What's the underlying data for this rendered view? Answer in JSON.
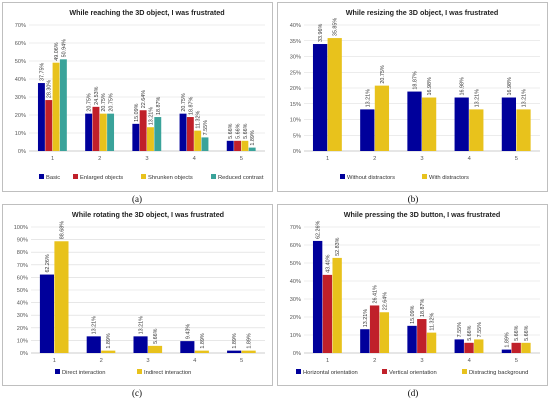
{
  "captions": [
    "(a)",
    "(b)",
    "(c)",
    "(d)"
  ],
  "chart_data": [
    {
      "type": "bar",
      "title": "While reaching the 3D object, I was frustrated",
      "categories": [
        "1",
        "2",
        "3",
        "4",
        "5"
      ],
      "ylim": [
        0,
        70
      ],
      "yticks": [
        0,
        10,
        20,
        30,
        40,
        50,
        60,
        70
      ],
      "ytick_labels": [
        "0%",
        "10%",
        "20%",
        "30%",
        "40%",
        "50%",
        "60%",
        "70%"
      ],
      "grid": true,
      "legend_position": "bottom",
      "series": [
        {
          "name": "Basic",
          "color": "#00009b",
          "values": [
            37.75,
            20.75,
            15.09,
            20.75,
            5.66
          ],
          "labels": [
            "37.75%",
            "20.75%",
            "15.09%",
            "20.75%",
            "5.66%"
          ]
        },
        {
          "name": "Enlarged objects",
          "color": "#c0202a",
          "values": [
            28.3,
            24.53,
            22.64,
            18.87,
            5.66
          ],
          "labels": [
            "28.30%",
            "24.53%",
            "22.64%",
            "18.87%",
            "5.66%"
          ]
        },
        {
          "name": "Shrunken objects",
          "color": "#e8c21c",
          "values": [
            49.06,
            20.75,
            13.21,
            11.32,
            5.66
          ],
          "labels": [
            "49.06%",
            "20.75%",
            "13.21%",
            "11.32%",
            "5.66%"
          ]
        },
        {
          "name": "Reduced contrast",
          "color": "#3aa39a",
          "values": [
            50.94,
            20.75,
            18.87,
            7.55,
            1.89
          ],
          "labels": [
            "50.94%",
            "20.75%",
            "18.87%",
            "7.55%",
            "1.89%"
          ]
        }
      ]
    },
    {
      "type": "bar",
      "title": "While resizing the 3D object, I was frustrated",
      "categories": [
        "1",
        "2",
        "3",
        "4",
        "5"
      ],
      "ylim": [
        0,
        40
      ],
      "yticks": [
        0,
        5,
        10,
        15,
        20,
        25,
        30,
        35,
        40
      ],
      "ytick_labels": [
        "0%",
        "5%",
        "10%",
        "15%",
        "20%",
        "25%",
        "30%",
        "35%",
        "40%"
      ],
      "grid": true,
      "legend_position": "bottom",
      "series": [
        {
          "name": "Without distractors",
          "color": "#00009b",
          "values": [
            33.96,
            13.21,
            18.87,
            16.98,
            16.98
          ],
          "labels": [
            "33.96%",
            "13.21%",
            "18.87%",
            "16.98%",
            "16.98%"
          ]
        },
        {
          "name": "With distractors",
          "color": "#e8c21c",
          "values": [
            35.85,
            20.75,
            16.98,
            13.21,
            13.21
          ],
          "labels": [
            "35.85%",
            "20.75%",
            "16.98%",
            "13.21%",
            "13.21%"
          ]
        }
      ]
    },
    {
      "type": "bar",
      "title": "While rotating the 3D object, I was frustrated",
      "categories": [
        "1",
        "2",
        "3",
        "4",
        "5"
      ],
      "ylim": [
        0,
        100
      ],
      "yticks": [
        0,
        10,
        20,
        30,
        40,
        50,
        60,
        70,
        80,
        90,
        100
      ],
      "ytick_labels": [
        "0%",
        "10%",
        "20%",
        "30%",
        "40%",
        "50%",
        "60%",
        "70%",
        "80%",
        "90%",
        "100%"
      ],
      "grid": true,
      "legend_position": "bottom",
      "series": [
        {
          "name": "Direct interaction",
          "color": "#00009b",
          "values": [
            62.26,
            13.21,
            13.21,
            9.43,
            1.89
          ],
          "labels": [
            "62.26%",
            "13.21%",
            "13.21%",
            "9.43%",
            "1.89%"
          ]
        },
        {
          "name": "Indirect interaction",
          "color": "#e8c21c",
          "values": [
            88.68,
            1.89,
            5.66,
            1.89,
            1.89
          ],
          "labels": [
            "88.68%",
            "1.89%",
            "5.66%",
            "1.89%",
            "1.89%"
          ]
        }
      ]
    },
    {
      "type": "bar",
      "title": "While pressing the 3D button, I was frustrated",
      "categories": [
        "1",
        "2",
        "3",
        "4",
        "5"
      ],
      "ylim": [
        0,
        70
      ],
      "yticks": [
        0,
        10,
        20,
        30,
        40,
        50,
        60,
        70
      ],
      "ytick_labels": [
        "0%",
        "10%",
        "20%",
        "30%",
        "40%",
        "50%",
        "60%",
        "70%"
      ],
      "grid": true,
      "legend_position": "bottom",
      "series": [
        {
          "name": "Horizontal orientation",
          "color": "#00009b",
          "values": [
            62.26,
            13.21,
            15.09,
            7.55,
            1.89
          ],
          "labels": [
            "62.26%",
            "13.21%",
            "15.09%",
            "7.55%",
            "1.89%"
          ]
        },
        {
          "name": "Vertical orientation",
          "color": "#c0202a",
          "values": [
            43.4,
            26.41,
            18.87,
            5.66,
            5.66
          ],
          "labels": [
            "43.40%",
            "26.41%",
            "18.87%",
            "5.66%",
            "5.66%"
          ]
        },
        {
          "name": "Distracting background",
          "color": "#e8c21c",
          "values": [
            52.83,
            22.64,
            11.32,
            7.55,
            5.66
          ],
          "labels": [
            "52.83%",
            "22.64%",
            "11.32%",
            "7.55%",
            "5.66%"
          ]
        }
      ]
    }
  ]
}
